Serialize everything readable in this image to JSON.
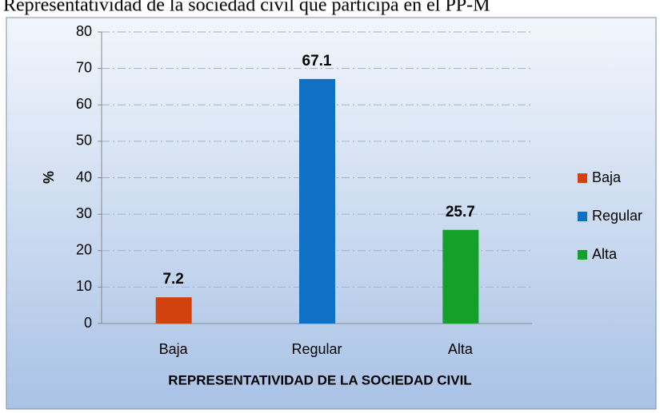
{
  "chart_data": {
    "type": "bar",
    "title": "Representatividad de la sociedad civil que participa en el PP-M",
    "categories": [
      "Baja",
      "Regular",
      "Alta"
    ],
    "values": [
      7.2,
      67.1,
      25.7
    ],
    "colors": [
      "#d2420f",
      "#0f70c4",
      "#14a02a"
    ],
    "x_label": "REPRESENTATIVIDAD DE LA SOCIEDAD CIVIL",
    "y_label": "%",
    "ylim": [
      0,
      80
    ],
    "yticks": [
      0,
      10,
      20,
      30,
      40,
      50,
      60,
      70,
      80
    ],
    "grid": true,
    "legend": "right"
  }
}
